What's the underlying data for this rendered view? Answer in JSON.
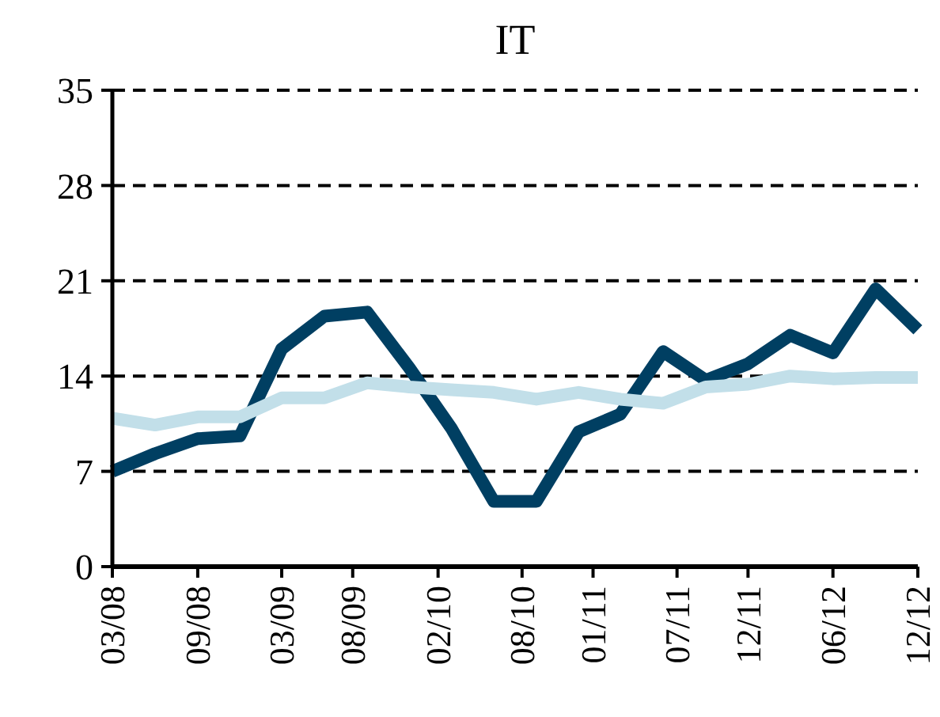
{
  "chart_data": {
    "type": "line",
    "title": "IT",
    "x": [
      "2008-03",
      "2008-06",
      "2008-09",
      "2008-12",
      "2009-03",
      "2009-06",
      "2009-09",
      "2009-12",
      "2010-03",
      "2010-06",
      "2010-09",
      "2010-12",
      "2011-03",
      "2011-06",
      "2011-09",
      "2011-12",
      "2012-03",
      "2012-06",
      "2012-09",
      "2012-12"
    ],
    "series": [
      {
        "color": "#003f62",
        "values": [
          7.0,
          8.3,
          9.4,
          9.6,
          16.0,
          18.4,
          18.7,
          14.6,
          10.2,
          4.8,
          4.8,
          9.9,
          11.2,
          15.8,
          13.7,
          14.9,
          17.0,
          15.7,
          20.4,
          17.4
        ]
      },
      {
        "color": "#c2dfe9",
        "values": [
          10.9,
          10.4,
          11.0,
          11.0,
          12.4,
          12.4,
          13.5,
          13.2,
          13.0,
          12.8,
          12.3,
          12.8,
          12.3,
          12.0,
          13.2,
          13.4,
          14.0,
          13.8,
          13.9,
          13.9
        ]
      }
    ],
    "xlim": [
      "2008-03",
      "2012-12"
    ],
    "xticks": [
      {
        "value": "2008-03",
        "label": "03/08"
      },
      {
        "value": "2008-09",
        "label": "09/08"
      },
      {
        "value": "2009-03",
        "label": "03/09"
      },
      {
        "value": "2009-08",
        "label": "08/09"
      },
      {
        "value": "2010-02",
        "label": "02/10"
      },
      {
        "value": "2010-08",
        "label": "08/10"
      },
      {
        "value": "2011-01",
        "label": "01/11"
      },
      {
        "value": "2011-07",
        "label": "07/11"
      },
      {
        "value": "2011-12",
        "label": "12/11"
      },
      {
        "value": "2012-06",
        "label": "06/12"
      },
      {
        "value": "2012-12",
        "label": "12/12"
      }
    ],
    "ylim": [
      0,
      35
    ],
    "yticks": [
      0,
      7,
      14,
      21,
      28,
      35
    ],
    "grid": "y",
    "marker": "none",
    "line_style": "solid"
  }
}
